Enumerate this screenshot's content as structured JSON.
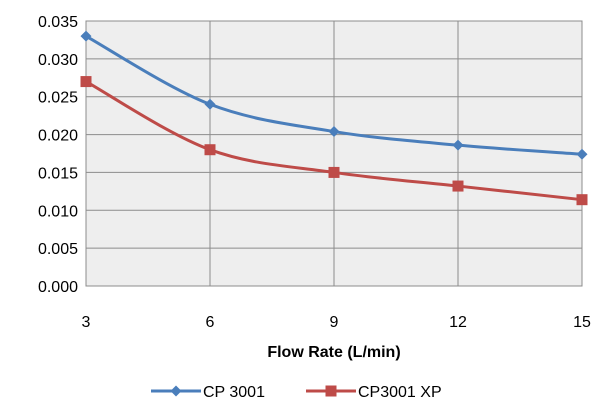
{
  "chart_data": {
    "type": "line",
    "title": "",
    "xlabel": "Flow Rate (L/min)",
    "ylabel": "",
    "x": [
      3,
      6,
      9,
      12,
      15
    ],
    "x_tick_labels": [
      "3",
      "6",
      "9",
      "12",
      "15"
    ],
    "ylim": [
      0,
      0.035
    ],
    "y_ticks": [
      0,
      0.005,
      0.01,
      0.015,
      0.02,
      0.025,
      0.03,
      0.035
    ],
    "y_tick_labels": [
      "0.000",
      "0.005",
      "0.010",
      "0.015",
      "0.020",
      "0.025",
      "0.030",
      "0.035"
    ],
    "grid": true,
    "legend_position": "bottom",
    "plot_background": "#eeeeee",
    "grid_color": "#8c8c8c",
    "series": [
      {
        "name": "CP 3001",
        "values": [
          0.033,
          0.024,
          0.0204,
          0.0186,
          0.0174
        ],
        "color": "#4a7ebb",
        "marker": "diamond"
      },
      {
        "name": "CP3001 XP",
        "values": [
          0.027,
          0.018,
          0.015,
          0.0132,
          0.0114
        ],
        "color": "#be4b48",
        "marker": "square"
      }
    ]
  }
}
